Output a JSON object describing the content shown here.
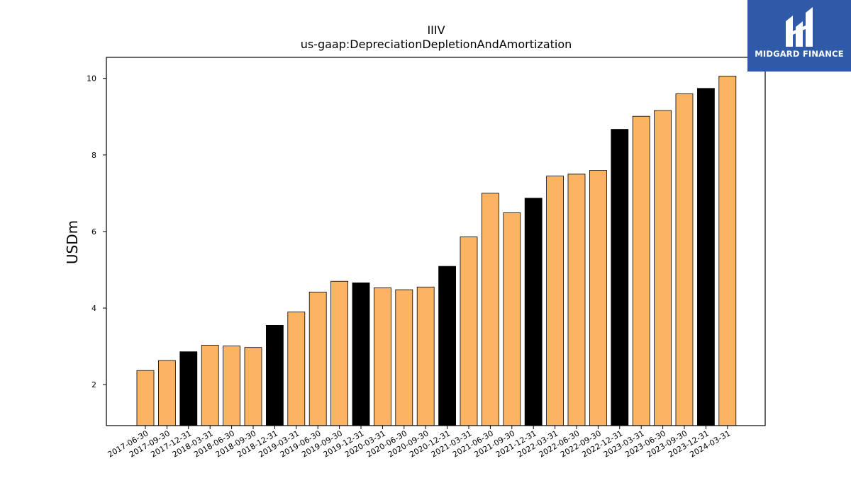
{
  "chart_data": {
    "type": "bar",
    "title": "IIIV",
    "subtitle": "us-gaap:DepreciationDepletionAndAmortization",
    "xlabel": "",
    "ylabel": "USDm",
    "ylim": [
      0.93,
      10.55
    ],
    "yticks": [
      2,
      4,
      6,
      8,
      10
    ],
    "grid": false,
    "categories": [
      "2017-06-30",
      "2017-09-30",
      "2017-12-31",
      "2018-03-31",
      "2018-06-30",
      "2018-09-30",
      "2018-12-31",
      "2019-03-31",
      "2019-06-30",
      "2019-09-30",
      "2019-12-31",
      "2020-03-31",
      "2020-06-30",
      "2020-09-30",
      "2020-12-31",
      "2021-03-31",
      "2021-06-30",
      "2021-09-30",
      "2021-12-31",
      "2022-03-31",
      "2022-06-30",
      "2022-09-30",
      "2022-12-31",
      "2023-03-31",
      "2023-06-30",
      "2023-09-30",
      "2023-12-31",
      "2024-03-31"
    ],
    "values": [
      2.37,
      2.63,
      2.86,
      3.03,
      3.01,
      2.97,
      3.55,
      3.9,
      4.42,
      4.7,
      4.66,
      4.53,
      4.48,
      4.55,
      5.09,
      5.86,
      7.0,
      6.49,
      6.87,
      7.45,
      7.5,
      7.6,
      8.67,
      9.01,
      9.16,
      9.6,
      9.74,
      10.06
    ],
    "bar_colors": [
      "#fdb462",
      "#fdb462",
      "#000000",
      "#fdb462",
      "#fdb462",
      "#fdb462",
      "#000000",
      "#fdb462",
      "#fdb462",
      "#fdb462",
      "#000000",
      "#fdb462",
      "#fdb462",
      "#fdb462",
      "#000000",
      "#fdb462",
      "#fdb462",
      "#fdb462",
      "#000000",
      "#fdb462",
      "#fdb462",
      "#fdb462",
      "#000000",
      "#fdb462",
      "#fdb462",
      "#fdb462",
      "#000000",
      "#fdb462"
    ],
    "colors": {
      "quarter": "#fdb462",
      "year_end": "#000000",
      "edge": "#000000"
    }
  },
  "logo": {
    "text": "MIDGARD FINANCE",
    "background": "#2e5aa8",
    "icon": "midgard-logo-icon"
  }
}
